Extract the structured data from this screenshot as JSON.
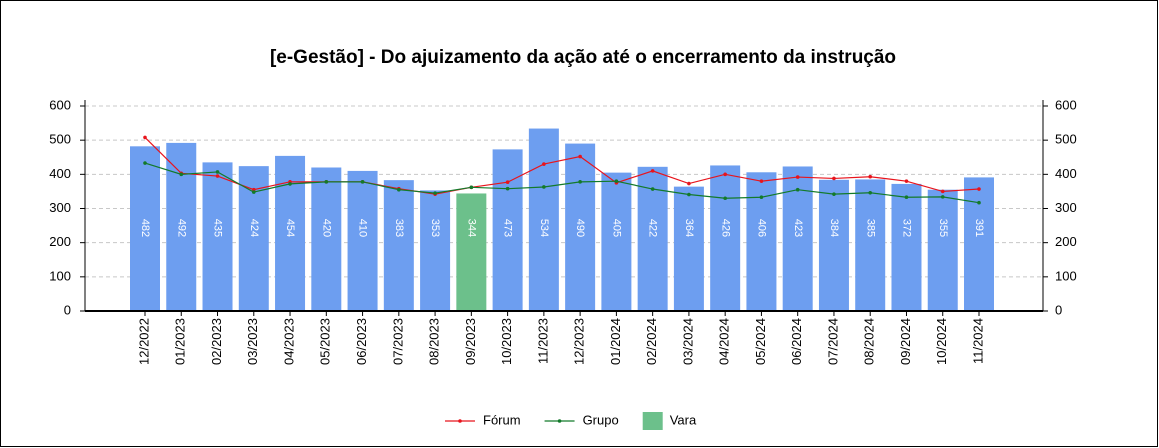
{
  "chart_data": {
    "type": "bar-line",
    "title": "[e-Gestão]  - Do ajuizamento da ação até o encerramento da instrução",
    "categories": [
      "12/2022",
      "01/2023",
      "02/2023",
      "03/2023",
      "04/2023",
      "05/2023",
      "06/2023",
      "07/2023",
      "08/2023",
      "09/2023",
      "10/2023",
      "11/2023",
      "12/2023",
      "01/2024",
      "02/2024",
      "03/2024",
      "04/2024",
      "05/2024",
      "06/2024",
      "07/2024",
      "08/2024",
      "09/2024",
      "10/2024",
      "11/2024"
    ],
    "series": [
      {
        "name": "Fórum",
        "kind": "line",
        "color": "#e8141c",
        "values": [
          508,
          403,
          395,
          355,
          378,
          378,
          378,
          358,
          342,
          362,
          377,
          430,
          452,
          375,
          410,
          373,
          400,
          380,
          392,
          388,
          393,
          380,
          350,
          357
        ]
      },
      {
        "name": "Grupo",
        "kind": "line",
        "color": "#137a2a",
        "values": [
          433,
          400,
          407,
          348,
          372,
          378,
          378,
          355,
          345,
          362,
          358,
          363,
          378,
          380,
          357,
          341,
          330,
          333,
          355,
          342,
          346,
          333,
          334,
          317
        ]
      },
      {
        "name": "Vara",
        "kind": "bar",
        "color": "#6cc08b",
        "colors": [
          "#6d9ef0",
          "#6d9ef0",
          "#6d9ef0",
          "#6d9ef0",
          "#6d9ef0",
          "#6d9ef0",
          "#6d9ef0",
          "#6d9ef0",
          "#6d9ef0",
          "#6cc08b",
          "#6d9ef0",
          "#6d9ef0",
          "#6d9ef0",
          "#6d9ef0",
          "#6d9ef0",
          "#6d9ef0",
          "#6d9ef0",
          "#6d9ef0",
          "#6d9ef0",
          "#6d9ef0",
          "#6d9ef0",
          "#6d9ef0",
          "#6d9ef0",
          "#6d9ef0"
        ],
        "values": [
          482,
          492,
          435,
          424,
          454,
          420,
          410,
          383,
          353,
          344,
          473,
          534,
          490,
          405,
          422,
          364,
          426,
          406,
          423,
          384,
          385,
          372,
          355,
          391
        ]
      }
    ],
    "ylim": [
      0,
      600
    ],
    "yticks": [
      0,
      100,
      200,
      300,
      400,
      500,
      600
    ],
    "y2lim": [
      0,
      600
    ],
    "y2ticks": [
      0,
      100,
      200,
      300,
      400,
      500,
      600
    ],
    "grid": true,
    "legend": "bottom"
  }
}
